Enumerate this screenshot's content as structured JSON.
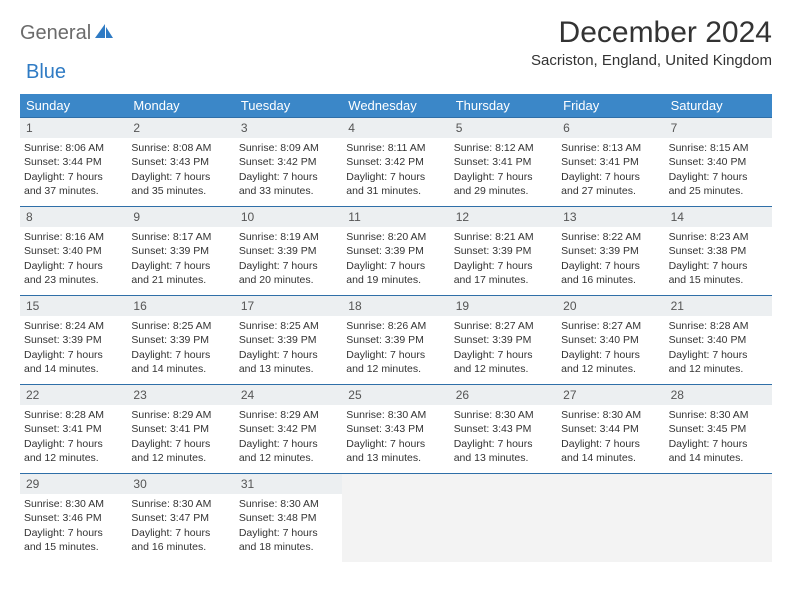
{
  "brand": {
    "part1": "General",
    "part2": "Blue"
  },
  "title": "December 2024",
  "location": "Sacriston, England, United Kingdom",
  "colors": {
    "header_bg": "#3b87c8",
    "header_text": "#ffffff",
    "row_border": "#2f6fa8",
    "daynum_bg": "#eceff1",
    "empty_bg": "#f3f3f3",
    "logo_accent": "#2f7bc4",
    "logo_gray": "#6b6b6b"
  },
  "daysOfWeek": [
    "Sunday",
    "Monday",
    "Tuesday",
    "Wednesday",
    "Thursday",
    "Friday",
    "Saturday"
  ],
  "weeks": [
    [
      {
        "n": "1",
        "sunrise": "Sunrise: 8:06 AM",
        "sunset": "Sunset: 3:44 PM",
        "day1": "Daylight: 7 hours",
        "day2": "and 37 minutes."
      },
      {
        "n": "2",
        "sunrise": "Sunrise: 8:08 AM",
        "sunset": "Sunset: 3:43 PM",
        "day1": "Daylight: 7 hours",
        "day2": "and 35 minutes."
      },
      {
        "n": "3",
        "sunrise": "Sunrise: 8:09 AM",
        "sunset": "Sunset: 3:42 PM",
        "day1": "Daylight: 7 hours",
        "day2": "and 33 minutes."
      },
      {
        "n": "4",
        "sunrise": "Sunrise: 8:11 AM",
        "sunset": "Sunset: 3:42 PM",
        "day1": "Daylight: 7 hours",
        "day2": "and 31 minutes."
      },
      {
        "n": "5",
        "sunrise": "Sunrise: 8:12 AM",
        "sunset": "Sunset: 3:41 PM",
        "day1": "Daylight: 7 hours",
        "day2": "and 29 minutes."
      },
      {
        "n": "6",
        "sunrise": "Sunrise: 8:13 AM",
        "sunset": "Sunset: 3:41 PM",
        "day1": "Daylight: 7 hours",
        "day2": "and 27 minutes."
      },
      {
        "n": "7",
        "sunrise": "Sunrise: 8:15 AM",
        "sunset": "Sunset: 3:40 PM",
        "day1": "Daylight: 7 hours",
        "day2": "and 25 minutes."
      }
    ],
    [
      {
        "n": "8",
        "sunrise": "Sunrise: 8:16 AM",
        "sunset": "Sunset: 3:40 PM",
        "day1": "Daylight: 7 hours",
        "day2": "and 23 minutes."
      },
      {
        "n": "9",
        "sunrise": "Sunrise: 8:17 AM",
        "sunset": "Sunset: 3:39 PM",
        "day1": "Daylight: 7 hours",
        "day2": "and 21 minutes."
      },
      {
        "n": "10",
        "sunrise": "Sunrise: 8:19 AM",
        "sunset": "Sunset: 3:39 PM",
        "day1": "Daylight: 7 hours",
        "day2": "and 20 minutes."
      },
      {
        "n": "11",
        "sunrise": "Sunrise: 8:20 AM",
        "sunset": "Sunset: 3:39 PM",
        "day1": "Daylight: 7 hours",
        "day2": "and 19 minutes."
      },
      {
        "n": "12",
        "sunrise": "Sunrise: 8:21 AM",
        "sunset": "Sunset: 3:39 PM",
        "day1": "Daylight: 7 hours",
        "day2": "and 17 minutes."
      },
      {
        "n": "13",
        "sunrise": "Sunrise: 8:22 AM",
        "sunset": "Sunset: 3:39 PM",
        "day1": "Daylight: 7 hours",
        "day2": "and 16 minutes."
      },
      {
        "n": "14",
        "sunrise": "Sunrise: 8:23 AM",
        "sunset": "Sunset: 3:38 PM",
        "day1": "Daylight: 7 hours",
        "day2": "and 15 minutes."
      }
    ],
    [
      {
        "n": "15",
        "sunrise": "Sunrise: 8:24 AM",
        "sunset": "Sunset: 3:39 PM",
        "day1": "Daylight: 7 hours",
        "day2": "and 14 minutes."
      },
      {
        "n": "16",
        "sunrise": "Sunrise: 8:25 AM",
        "sunset": "Sunset: 3:39 PM",
        "day1": "Daylight: 7 hours",
        "day2": "and 14 minutes."
      },
      {
        "n": "17",
        "sunrise": "Sunrise: 8:25 AM",
        "sunset": "Sunset: 3:39 PM",
        "day1": "Daylight: 7 hours",
        "day2": "and 13 minutes."
      },
      {
        "n": "18",
        "sunrise": "Sunrise: 8:26 AM",
        "sunset": "Sunset: 3:39 PM",
        "day1": "Daylight: 7 hours",
        "day2": "and 12 minutes."
      },
      {
        "n": "19",
        "sunrise": "Sunrise: 8:27 AM",
        "sunset": "Sunset: 3:39 PM",
        "day1": "Daylight: 7 hours",
        "day2": "and 12 minutes."
      },
      {
        "n": "20",
        "sunrise": "Sunrise: 8:27 AM",
        "sunset": "Sunset: 3:40 PM",
        "day1": "Daylight: 7 hours",
        "day2": "and 12 minutes."
      },
      {
        "n": "21",
        "sunrise": "Sunrise: 8:28 AM",
        "sunset": "Sunset: 3:40 PM",
        "day1": "Daylight: 7 hours",
        "day2": "and 12 minutes."
      }
    ],
    [
      {
        "n": "22",
        "sunrise": "Sunrise: 8:28 AM",
        "sunset": "Sunset: 3:41 PM",
        "day1": "Daylight: 7 hours",
        "day2": "and 12 minutes."
      },
      {
        "n": "23",
        "sunrise": "Sunrise: 8:29 AM",
        "sunset": "Sunset: 3:41 PM",
        "day1": "Daylight: 7 hours",
        "day2": "and 12 minutes."
      },
      {
        "n": "24",
        "sunrise": "Sunrise: 8:29 AM",
        "sunset": "Sunset: 3:42 PM",
        "day1": "Daylight: 7 hours",
        "day2": "and 12 minutes."
      },
      {
        "n": "25",
        "sunrise": "Sunrise: 8:30 AM",
        "sunset": "Sunset: 3:43 PM",
        "day1": "Daylight: 7 hours",
        "day2": "and 13 minutes."
      },
      {
        "n": "26",
        "sunrise": "Sunrise: 8:30 AM",
        "sunset": "Sunset: 3:43 PM",
        "day1": "Daylight: 7 hours",
        "day2": "and 13 minutes."
      },
      {
        "n": "27",
        "sunrise": "Sunrise: 8:30 AM",
        "sunset": "Sunset: 3:44 PM",
        "day1": "Daylight: 7 hours",
        "day2": "and 14 minutes."
      },
      {
        "n": "28",
        "sunrise": "Sunrise: 8:30 AM",
        "sunset": "Sunset: 3:45 PM",
        "day1": "Daylight: 7 hours",
        "day2": "and 14 minutes."
      }
    ],
    [
      {
        "n": "29",
        "sunrise": "Sunrise: 8:30 AM",
        "sunset": "Sunset: 3:46 PM",
        "day1": "Daylight: 7 hours",
        "day2": "and 15 minutes."
      },
      {
        "n": "30",
        "sunrise": "Sunrise: 8:30 AM",
        "sunset": "Sunset: 3:47 PM",
        "day1": "Daylight: 7 hours",
        "day2": "and 16 minutes."
      },
      {
        "n": "31",
        "sunrise": "Sunrise: 8:30 AM",
        "sunset": "Sunset: 3:48 PM",
        "day1": "Daylight: 7 hours",
        "day2": "and 18 minutes."
      },
      null,
      null,
      null,
      null
    ]
  ]
}
